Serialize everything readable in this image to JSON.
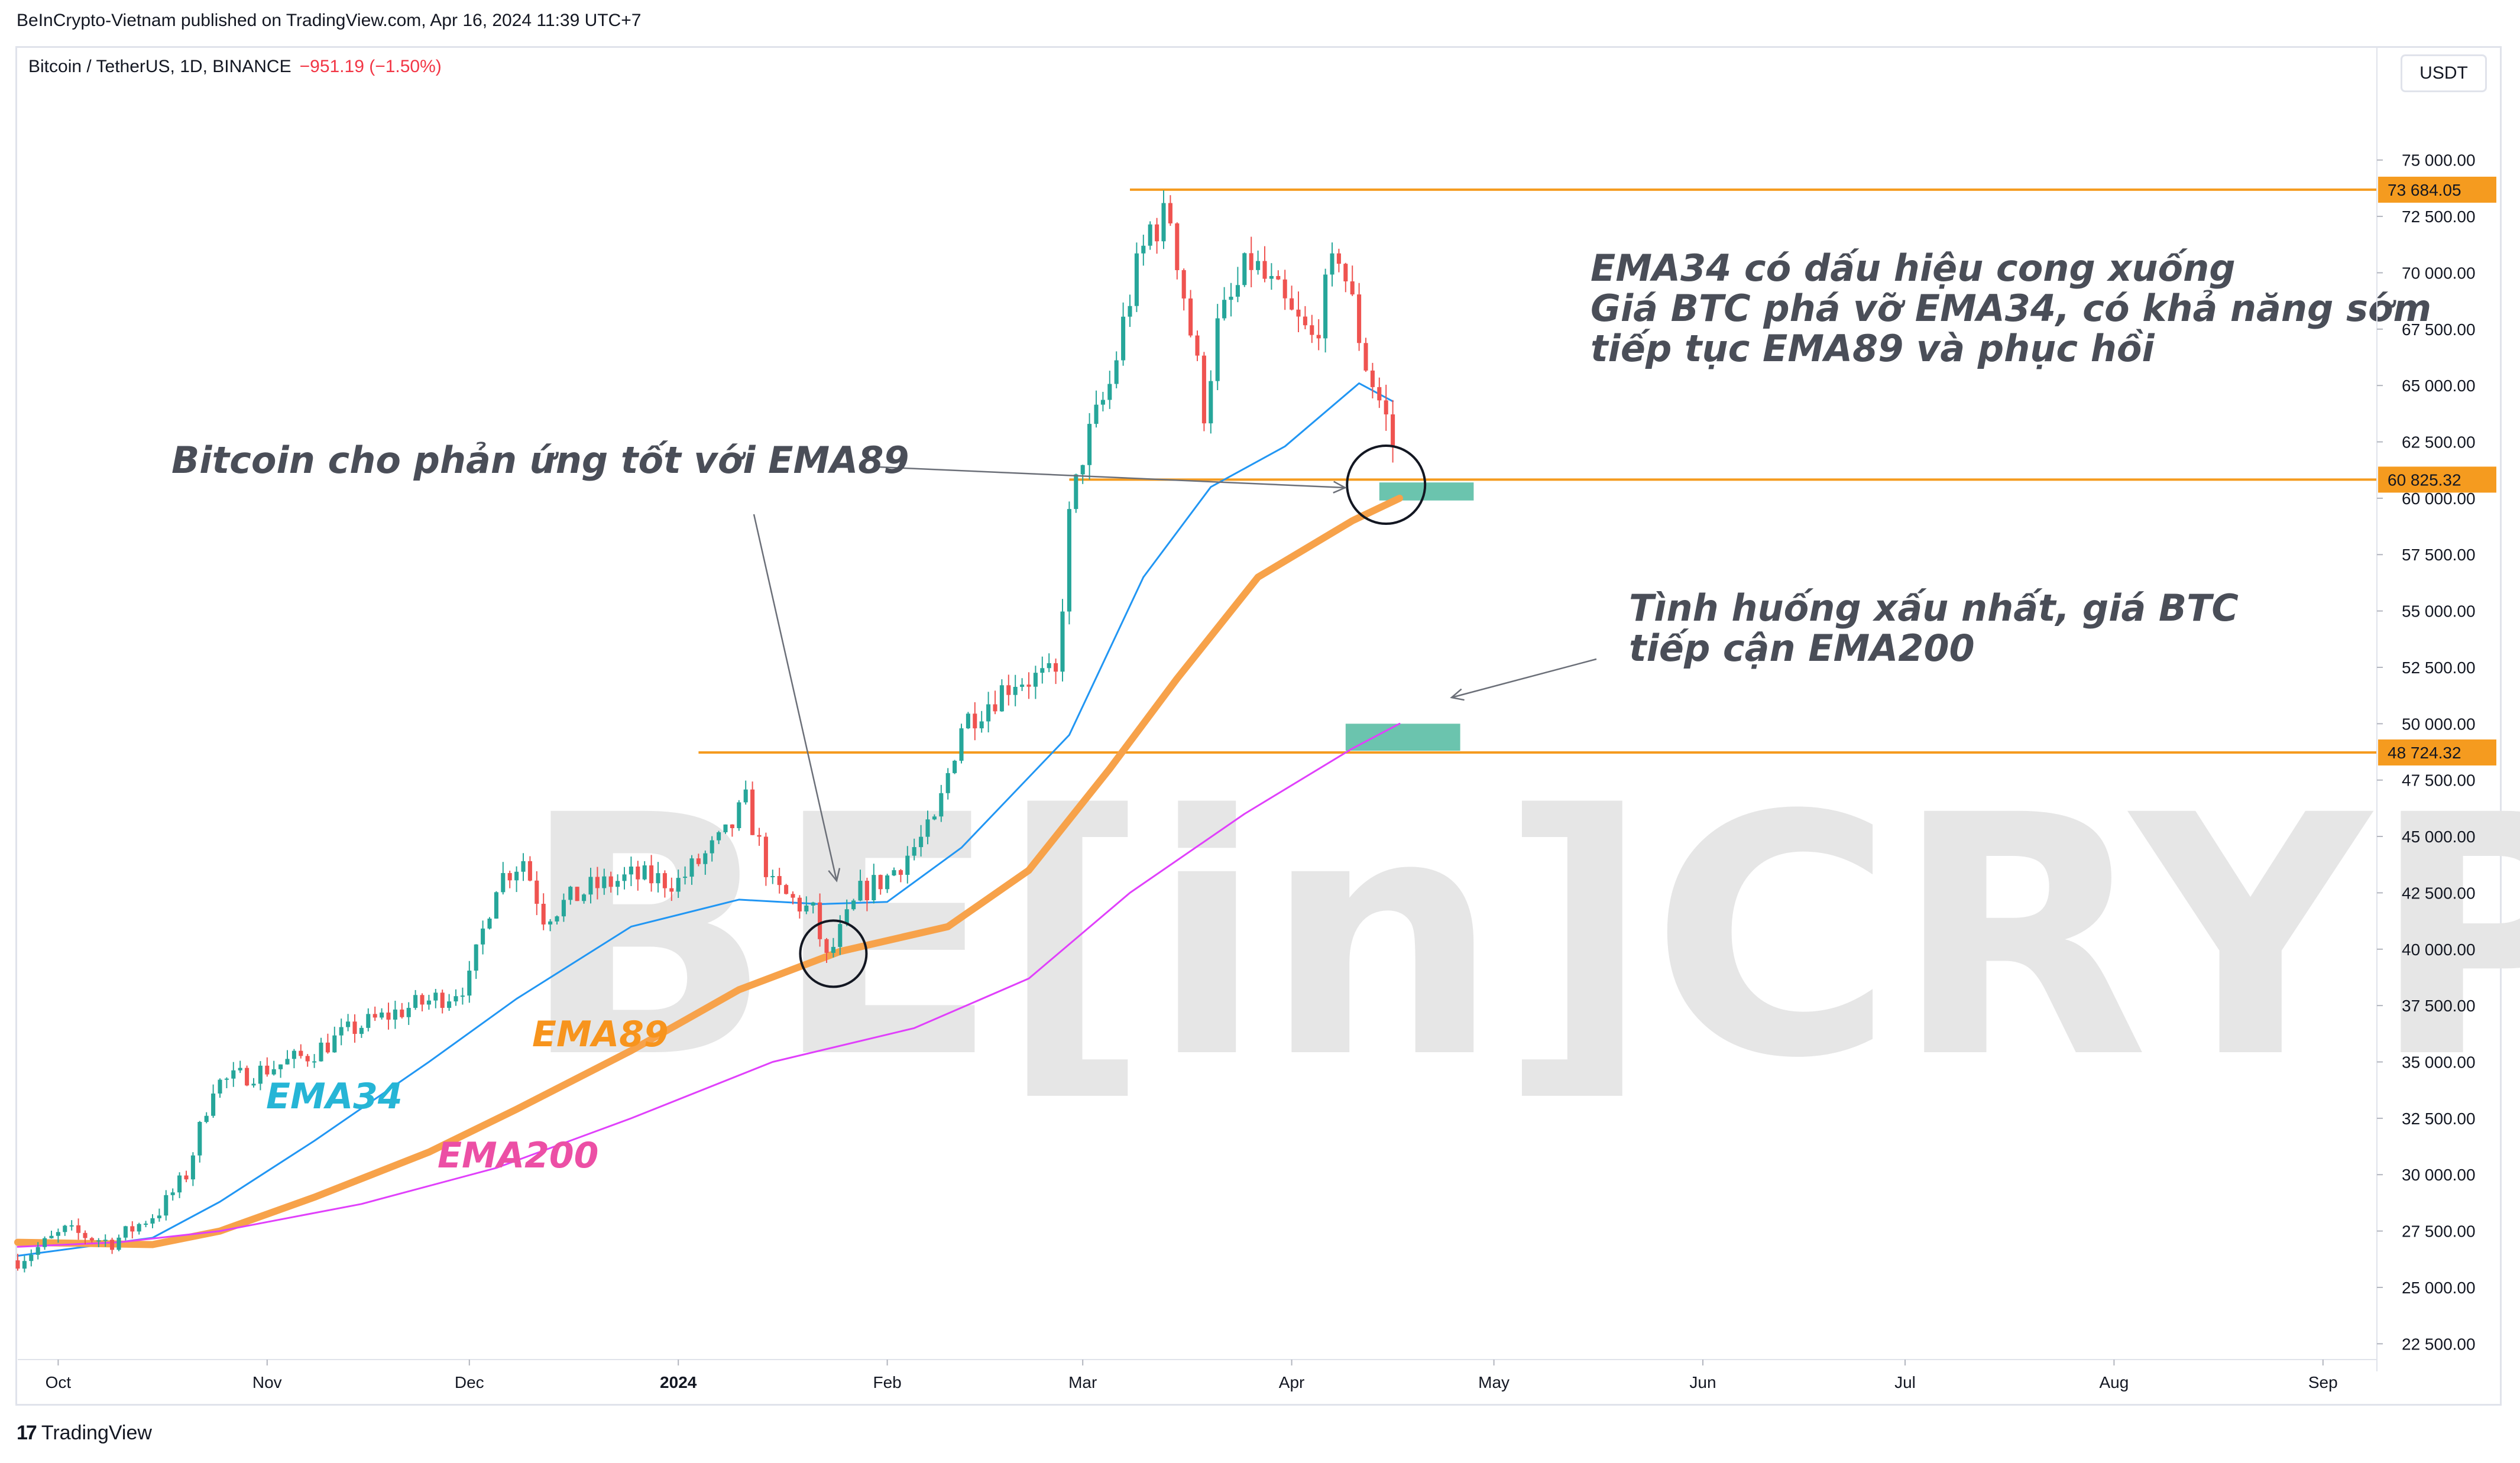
{
  "header": {
    "publisher_line": "BeInCrypto-Vietnam published on TradingView.com, Apr 16, 2024 11:39 UTC+7",
    "symbol": "Bitcoin / TetherUS, 1D, BINANCE",
    "change": "−951.19 (−1.50%)",
    "currency": "USDT"
  },
  "footer": {
    "brand": "TradingView",
    "brand_icon": "tradingview-logo-icon"
  },
  "watermark": {
    "text": "BE[in]CRYPTO",
    "color": "#e6e6e6"
  },
  "colors": {
    "up": "#26a69a",
    "down": "#ef5350",
    "ema34": "#2196f3",
    "ema89": "#f7a24a",
    "ema200": "#e040fb",
    "level": "#f59b1f",
    "zone": "#6bc4ae"
  },
  "chart_data": {
    "type": "candlestick",
    "xlabel": "",
    "ylabel": "",
    "y_ticks": [
      "75 000.00",
      "72 500.00",
      "70 000.00",
      "67 500.00",
      "65 000.00",
      "62 500.00",
      "60 000.00",
      "57 500.00",
      "55 000.00",
      "52 500.00",
      "50 000.00",
      "47 500.00",
      "45 000.00",
      "42 500.00",
      "40 000.00",
      "37 500.00",
      "35 000.00",
      "32 500.00",
      "30 000.00",
      "27 500.00",
      "25 000.00",
      "22 500.00"
    ],
    "ylim": [
      21800,
      80000
    ],
    "x_ticks": [
      {
        "label": "Oct",
        "date": "2023-10-01"
      },
      {
        "label": "Nov",
        "date": "2023-11-01"
      },
      {
        "label": "Dec",
        "date": "2023-12-01"
      },
      {
        "label": "2024",
        "date": "2024-01-01"
      },
      {
        "label": "Feb",
        "date": "2024-02-01"
      },
      {
        "label": "Mar",
        "date": "2024-03-01"
      },
      {
        "label": "Apr",
        "date": "2024-04-01"
      },
      {
        "label": "May",
        "date": "2024-05-01"
      },
      {
        "label": "Jun",
        "date": "2024-06-01"
      },
      {
        "label": "Jul",
        "date": "2024-07-01"
      },
      {
        "label": "Aug",
        "date": "2024-08-01"
      },
      {
        "label": "Sep",
        "date": "2024-09-01"
      }
    ],
    "xlim": [
      "2023-09-25",
      "2024-09-09"
    ],
    "price_levels": [
      {
        "value": 73684.05,
        "label": "73 684.05",
        "from": "2024-03-08"
      },
      {
        "value": 60825.32,
        "label": "60 825.32",
        "from": "2024-02-28"
      },
      {
        "value": 48724.32,
        "label": "48 724.32",
        "from": "2024-01-04"
      }
    ],
    "zones": [
      {
        "from": "2024-04-14",
        "to": "2024-04-28",
        "low": 59900,
        "high": 60700
      },
      {
        "from": "2024-04-09",
        "to": "2024-04-26",
        "low": 48800,
        "high": 50000
      }
    ],
    "price_path": [
      [
        "2023-09-25",
        26200
      ],
      [
        "2023-10-02",
        27500
      ],
      [
        "2023-10-09",
        27000
      ],
      [
        "2023-10-16",
        28400
      ],
      [
        "2023-10-20",
        30000
      ],
      [
        "2023-10-24",
        34000
      ],
      [
        "2023-10-31",
        34600
      ],
      [
        "2023-11-07",
        35300
      ],
      [
        "2023-11-14",
        36500
      ],
      [
        "2023-11-21",
        37300
      ],
      [
        "2023-11-28",
        38000
      ],
      [
        "2023-12-01",
        38600
      ],
      [
        "2023-12-05",
        43000
      ],
      [
        "2023-12-09",
        44000
      ],
      [
        "2023-12-12",
        41500
      ],
      [
        "2023-12-19",
        42700
      ],
      [
        "2023-12-25",
        43200
      ],
      [
        "2024-01-01",
        43000
      ],
      [
        "2024-01-08",
        45000
      ],
      [
        "2024-01-11",
        46500
      ],
      [
        "2024-01-15",
        42700
      ],
      [
        "2024-01-21",
        41600
      ],
      [
        "2024-01-23",
        39500
      ],
      [
        "2024-01-28",
        42500
      ],
      [
        "2024-02-01",
        43200
      ],
      [
        "2024-02-08",
        45500
      ],
      [
        "2024-02-12",
        50000
      ],
      [
        "2024-02-20",
        52000
      ],
      [
        "2024-02-26",
        52000
      ],
      [
        "2024-02-28",
        59000
      ],
      [
        "2024-03-01",
        62000
      ],
      [
        "2024-03-05",
        65000
      ],
      [
        "2024-03-08",
        69000
      ],
      [
        "2024-03-11",
        72000
      ],
      [
        "2024-03-14",
        72500
      ],
      [
        "2024-03-19",
        64000
      ],
      [
        "2024-03-21",
        67500
      ],
      [
        "2024-03-26",
        70500
      ],
      [
        "2024-04-01",
        68000
      ],
      [
        "2024-04-04",
        67000
      ],
      [
        "2024-04-08",
        71000
      ],
      [
        "2024-04-12",
        66000
      ],
      [
        "2024-04-15",
        63500
      ],
      [
        "2024-04-16",
        62400
      ]
    ],
    "series": [
      {
        "name": "EMA34",
        "points": [
          [
            "2023-09-25",
            26400
          ],
          [
            "2023-10-15",
            27200
          ],
          [
            "2023-10-25",
            28800
          ],
          [
            "2023-11-08",
            31500
          ],
          [
            "2023-11-25",
            35000
          ],
          [
            "2023-12-08",
            37800
          ],
          [
            "2023-12-25",
            41000
          ],
          [
            "2024-01-10",
            42200
          ],
          [
            "2024-01-22",
            42000
          ],
          [
            "2024-02-01",
            42100
          ],
          [
            "2024-02-12",
            44500
          ],
          [
            "2024-02-28",
            49500
          ],
          [
            "2024-03-10",
            56500
          ],
          [
            "2024-03-20",
            60500
          ],
          [
            "2024-03-31",
            62300
          ],
          [
            "2024-04-11",
            65100
          ],
          [
            "2024-04-16",
            64300
          ]
        ]
      },
      {
        "name": "EMA89",
        "points": [
          [
            "2023-09-25",
            27000
          ],
          [
            "2023-10-15",
            26900
          ],
          [
            "2023-10-25",
            27500
          ],
          [
            "2023-11-08",
            29000
          ],
          [
            "2023-11-25",
            31000
          ],
          [
            "2023-12-08",
            32900
          ],
          [
            "2023-12-25",
            35500
          ],
          [
            "2024-01-10",
            38200
          ],
          [
            "2024-01-25",
            39900
          ],
          [
            "2024-02-10",
            41000
          ],
          [
            "2024-02-22",
            43500
          ],
          [
            "2024-03-05",
            48000
          ],
          [
            "2024-03-15",
            52000
          ],
          [
            "2024-03-27",
            56500
          ],
          [
            "2024-04-10",
            59000
          ],
          [
            "2024-04-17",
            60000
          ]
        ]
      },
      {
        "name": "EMA200",
        "points": [
          [
            "2023-09-25",
            26800
          ],
          [
            "2023-10-10",
            27000
          ],
          [
            "2023-10-25",
            27500
          ],
          [
            "2023-11-15",
            28700
          ],
          [
            "2023-12-05",
            30300
          ],
          [
            "2023-12-25",
            32500
          ],
          [
            "2024-01-15",
            35000
          ],
          [
            "2024-02-05",
            36500
          ],
          [
            "2024-02-22",
            38700
          ],
          [
            "2024-03-08",
            42500
          ],
          [
            "2024-03-25",
            46000
          ],
          [
            "2024-04-10",
            48900
          ],
          [
            "2024-04-17",
            50000
          ]
        ]
      }
    ],
    "labels": [
      {
        "text": "EMA34",
        "color": "#26b5d6"
      },
      {
        "text": "EMA89",
        "color": "#f7941d"
      },
      {
        "text": "EMA200",
        "color": "#ec4fa5"
      }
    ],
    "annotations": [
      {
        "id": "ema89-reaction",
        "lines": [
          "Bitcoin cho phản ứng tốt với EMA89"
        ]
      },
      {
        "id": "ema34-break",
        "lines": [
          "EMA34 có dấu hiệu cong xuống",
          "Giá BTC phá vỡ EMA34, có khả năng sớm",
          "tiếp tục EMA89 và phục hồi"
        ]
      },
      {
        "id": "worst-case",
        "lines": [
          "Tình huống xấu nhất, giá BTC",
          "tiếp cận EMA200"
        ]
      }
    ]
  }
}
